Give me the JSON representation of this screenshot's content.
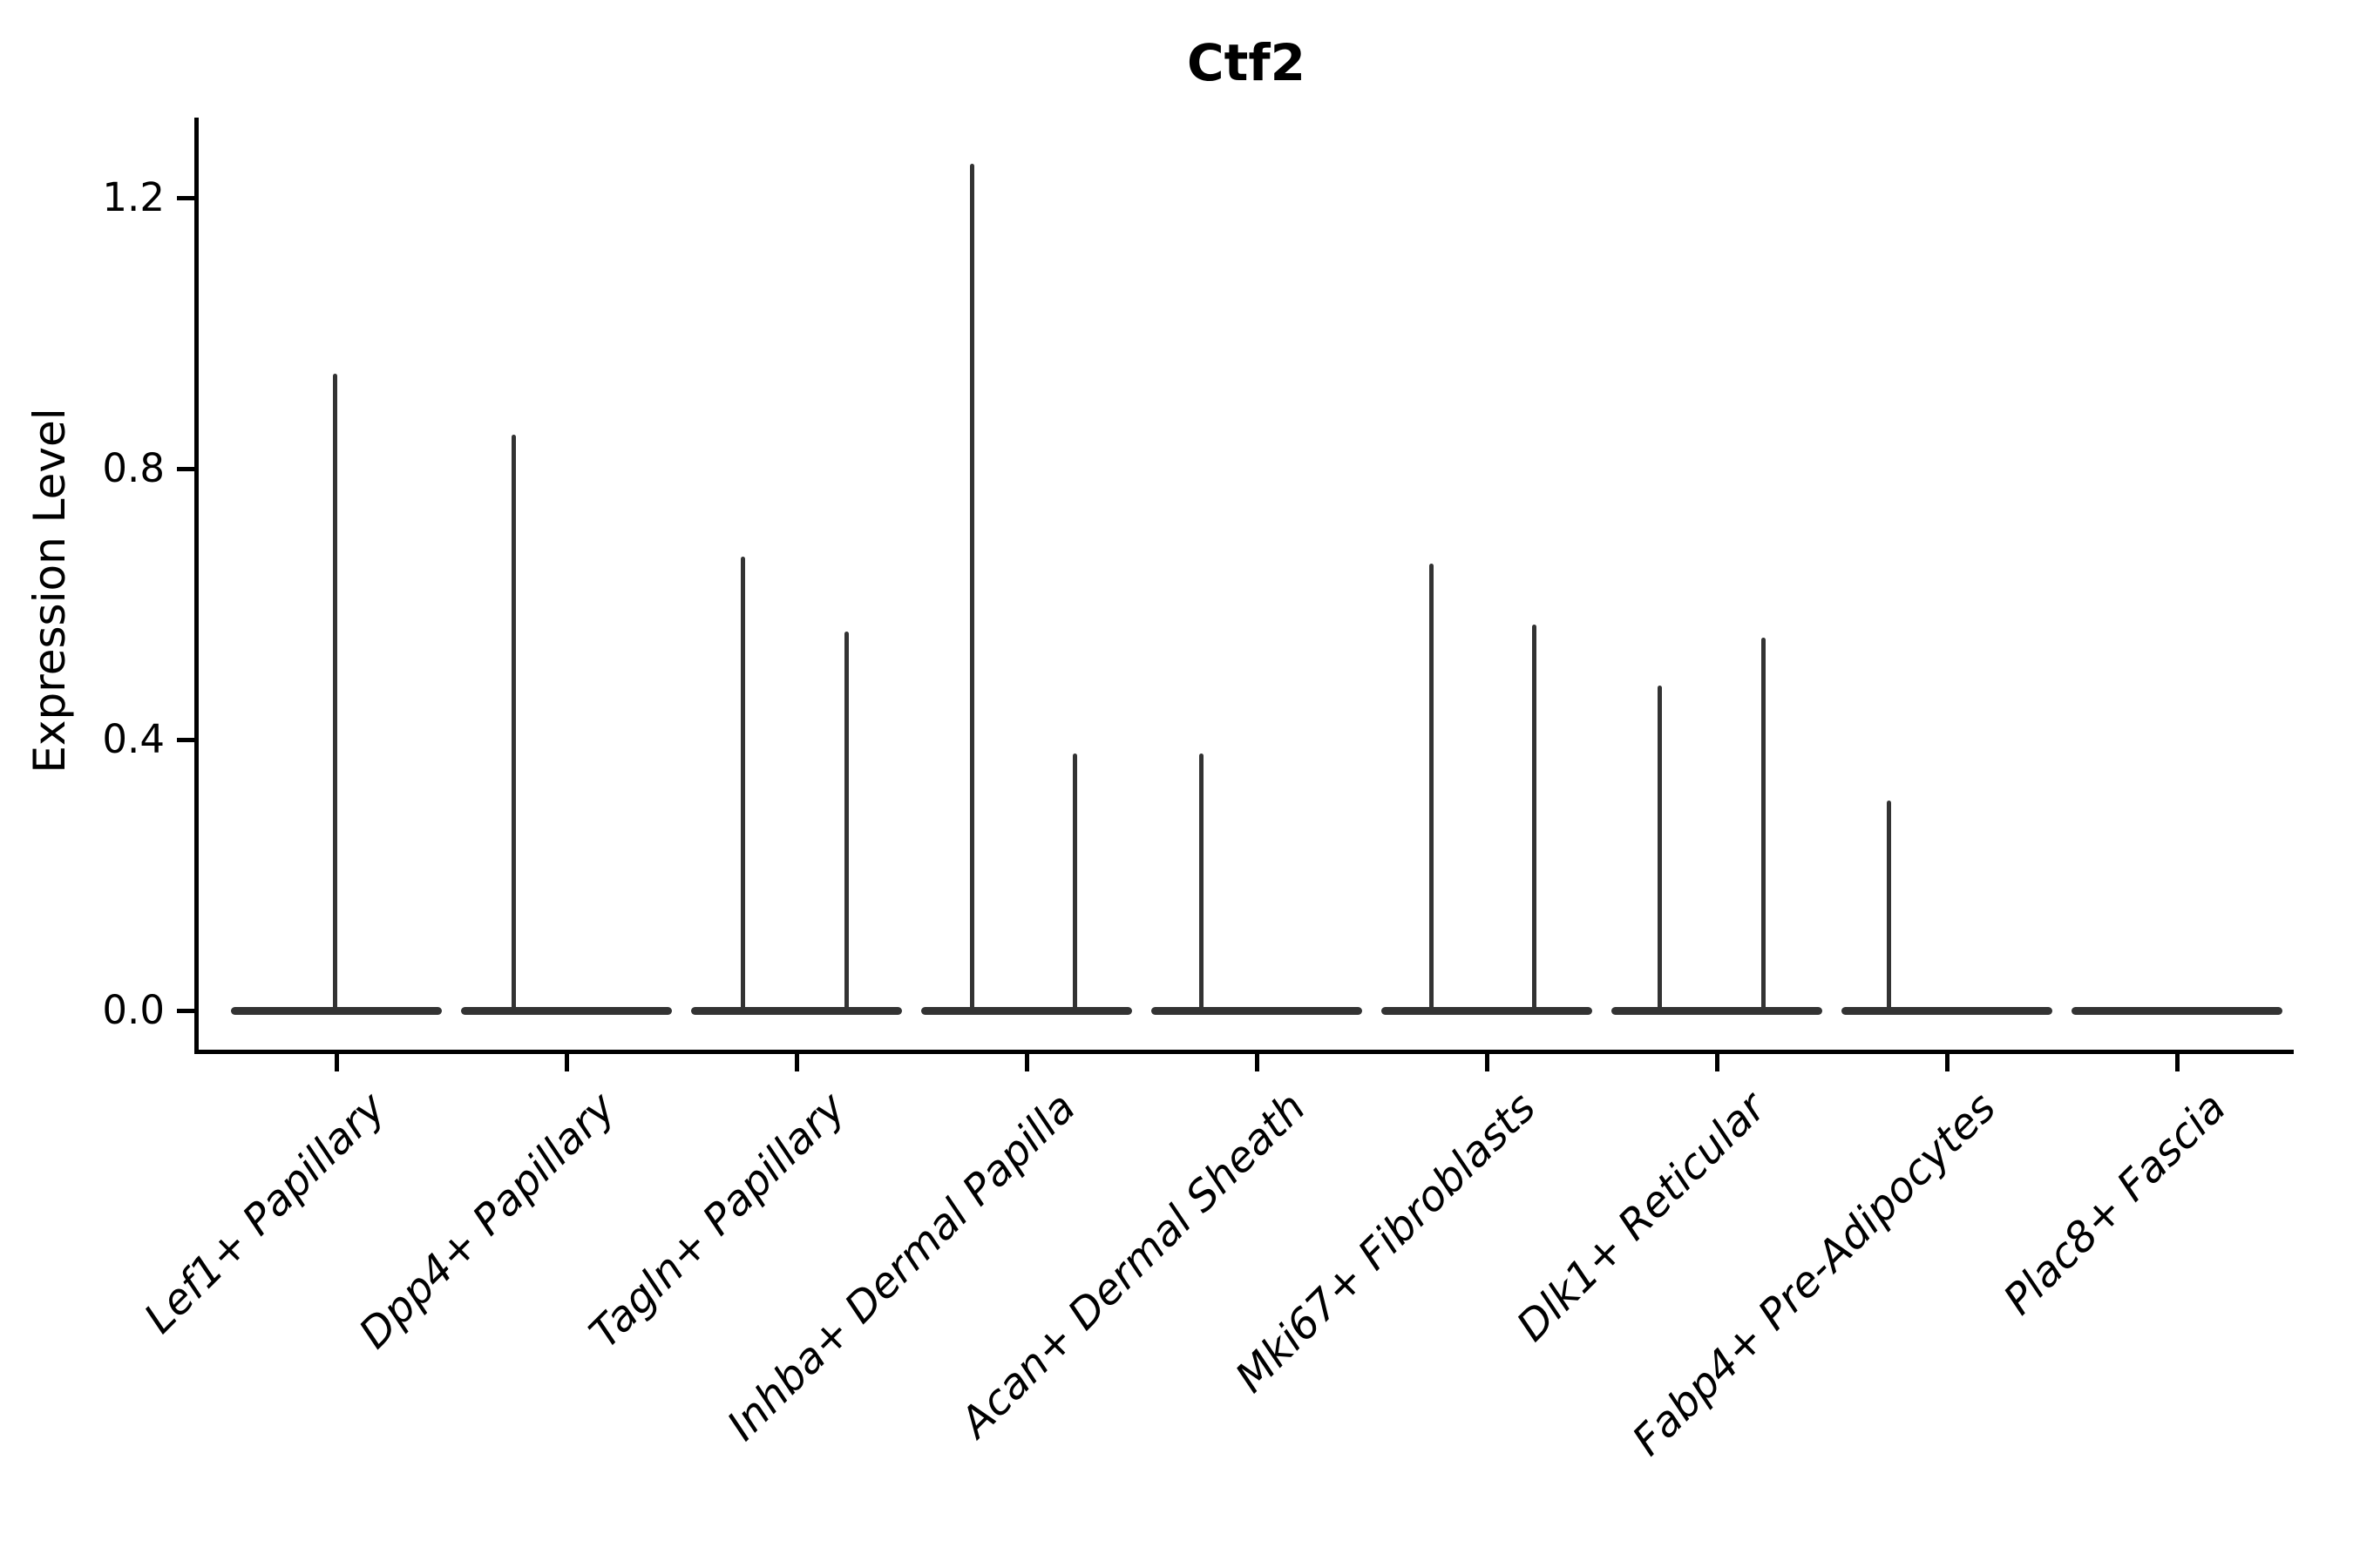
{
  "title": "Ctf2",
  "y_axis": {
    "label": "Expression Level",
    "tick_labels": [
      "0.0",
      "0.4",
      "0.8",
      "1.2"
    ],
    "tick_values": [
      0.0,
      0.4,
      0.8,
      1.2
    ]
  },
  "colors": {
    "violin": "#333333",
    "axis": "#000000",
    "text": "#000000"
  },
  "chart_data": {
    "type": "violin",
    "title": "Ctf2",
    "xlabel": "",
    "ylabel": "Expression Level",
    "ylim": [
      0,
      1.32
    ],
    "grid": false,
    "legend": "none",
    "description": "Sparse single-cell expression violins: each cell type shows a flat zero-density base with one or two thin density spikes rising to the maximum expression value.",
    "categories": [
      "Lef1+ Papillary",
      "Dpp4+ Papillary",
      "Tagln+ Papillary",
      "Inhba+ Dermal Papilla",
      "Acan+ Dermal Sheath",
      "Mki67+ Fibroblasts",
      "Dlk1+ Reticular",
      "Fabp4+ Pre-Adipocytes",
      "Plac8+ Fascia"
    ],
    "violins": [
      {
        "category": "Lef1+ Papillary",
        "base_value": 0.0,
        "spikes": [
          {
            "dx": -2,
            "max": 0.94
          }
        ]
      },
      {
        "category": "Dpp4+ Papillary",
        "base_value": 0.0,
        "spikes": [
          {
            "dx": -61,
            "max": 0.85
          }
        ]
      },
      {
        "category": "Tagln+ Papillary",
        "base_value": 0.0,
        "spikes": [
          {
            "dx": -62,
            "max": 0.67
          },
          {
            "dx": 57,
            "max": 0.56
          }
        ]
      },
      {
        "category": "Inhba+ Dermal Papilla",
        "base_value": 0.0,
        "spikes": [
          {
            "dx": -63,
            "max": 1.25
          },
          {
            "dx": 55,
            "max": 0.38
          }
        ]
      },
      {
        "category": "Acan+ Dermal Sheath",
        "base_value": 0.0,
        "spikes": [
          {
            "dx": -64,
            "max": 0.38
          }
        ]
      },
      {
        "category": "Mki67+ Fibroblasts",
        "base_value": 0.0,
        "spikes": [
          {
            "dx": -64,
            "max": 0.66
          },
          {
            "dx": 54,
            "max": 0.57
          }
        ]
      },
      {
        "category": "Dlk1+ Reticular",
        "base_value": 0.0,
        "spikes": [
          {
            "dx": -66,
            "max": 0.48
          },
          {
            "dx": 53,
            "max": 0.55
          }
        ]
      },
      {
        "category": "Fabp4+ Pre-Adipocytes",
        "base_value": 0.0,
        "spikes": [
          {
            "dx": -67,
            "max": 0.31
          }
        ]
      },
      {
        "category": "Plac8+ Fascia",
        "base_value": 0.0,
        "spikes": []
      }
    ]
  }
}
